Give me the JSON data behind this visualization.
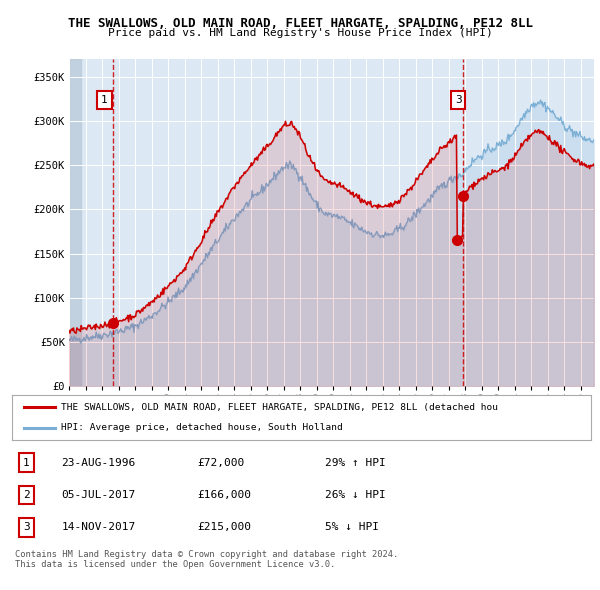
{
  "title": "THE SWALLOWS, OLD MAIN ROAD, FLEET HARGATE, SPALDING, PE12 8LL",
  "subtitle": "Price paid vs. HM Land Registry's House Price Index (HPI)",
  "hpi_color": "#7aaed4",
  "price_color": "#cc0000",
  "bg_color": "#dce9f5",
  "ylim": [
    0,
    370000
  ],
  "yticks": [
    0,
    50000,
    100000,
    150000,
    200000,
    250000,
    300000,
    350000
  ],
  "ytick_labels": [
    "£0",
    "£50K",
    "£100K",
    "£150K",
    "£200K",
    "£250K",
    "£300K",
    "£350K"
  ],
  "sale1_date": 1996.65,
  "sale1_price": 72000,
  "sale2_date": 2017.51,
  "sale2_price": 166000,
  "sale3_date": 2017.87,
  "sale3_price": 215000,
  "xlim_left": 1994.0,
  "xlim_right": 2025.8,
  "legend_prop_label": "THE SWALLOWS, OLD MAIN ROAD, FLEET HARGATE, SPALDING, PE12 8LL (detached hou",
  "legend_hpi_label": "HPI: Average price, detached house, South Holland",
  "table_rows": [
    {
      "num": "1",
      "date": "23-AUG-1996",
      "price": "£72,000",
      "hpi": "29% ↑ HPI"
    },
    {
      "num": "2",
      "date": "05-JUL-2017",
      "price": "£166,000",
      "hpi": "26% ↓ HPI"
    },
    {
      "num": "3",
      "date": "14-NOV-2017",
      "price": "£215,000",
      "hpi": "5% ↓ HPI"
    }
  ],
  "footer": "Contains HM Land Registry data © Crown copyright and database right 2024.\nThis data is licensed under the Open Government Licence v3.0."
}
